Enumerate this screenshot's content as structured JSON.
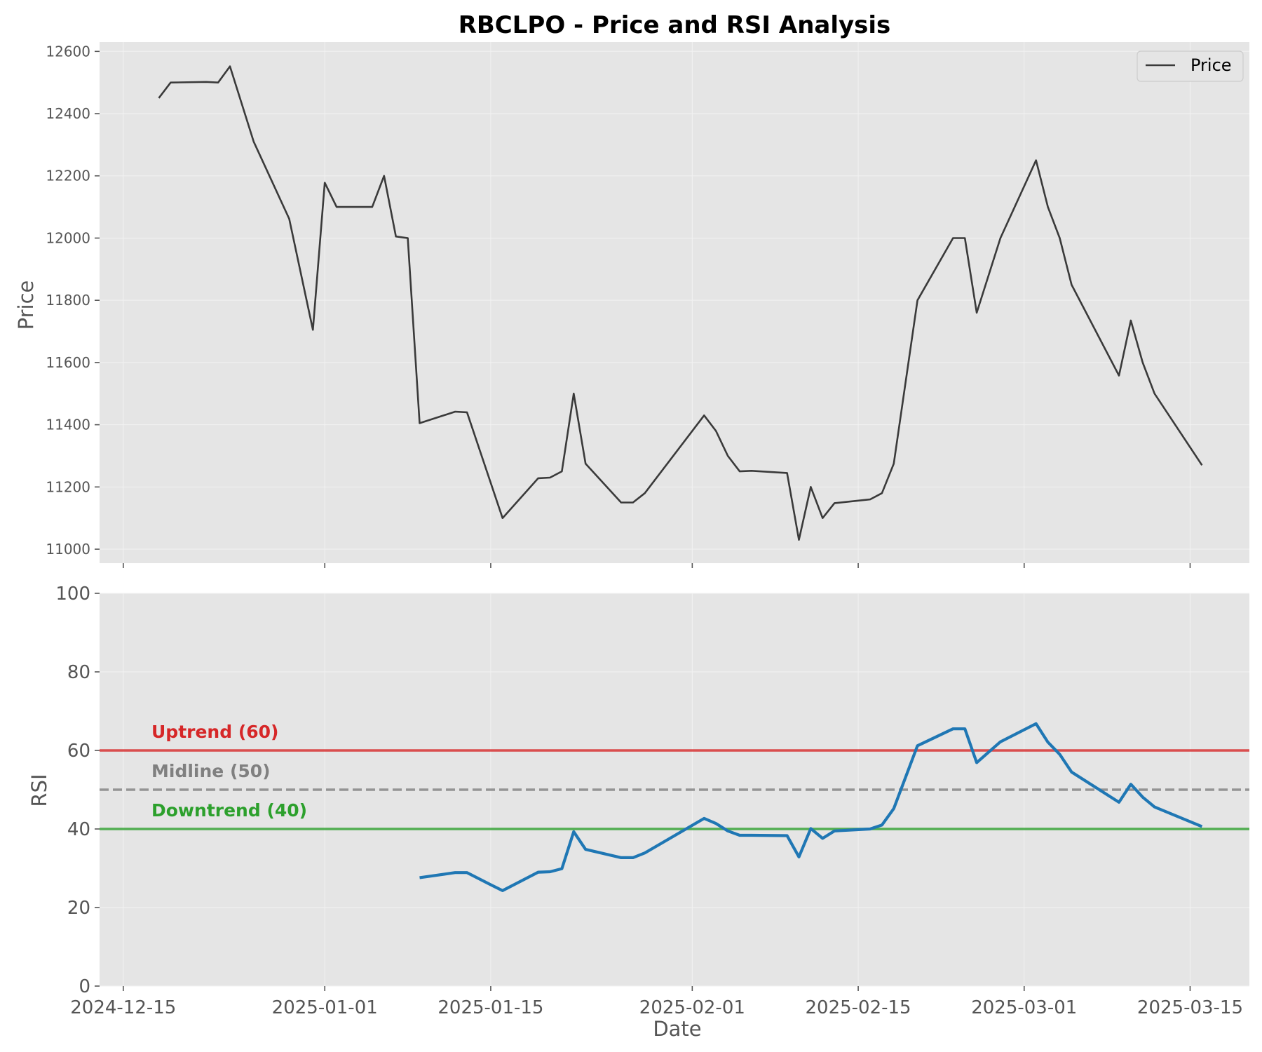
{
  "chart_data": {
    "title": "RBCLPO - Price and RSI Analysis",
    "xlabel": "Date",
    "x_ticks": [
      "2024-12-15",
      "2025-01-01",
      "2025-01-15",
      "2025-02-01",
      "2025-02-15",
      "2025-03-01",
      "2025-03-15"
    ],
    "x_range": [
      "2024-12-13",
      "2025-03-20"
    ],
    "panels": [
      {
        "type": "line",
        "ylabel": "Price",
        "ylim": [
          10955,
          12630
        ],
        "yticks": [
          11000,
          11200,
          11400,
          11600,
          11800,
          12000,
          12200,
          12400,
          12600
        ],
        "grid": true,
        "legend": {
          "position": "top-right",
          "entries": [
            "Price"
          ]
        },
        "series": [
          {
            "name": "Price",
            "color": "#3a3a3a",
            "points": [
              [
                "2024-12-18",
                12450
              ],
              [
                "2024-12-19",
                12500
              ],
              [
                "2024-12-22",
                12502
              ],
              [
                "2024-12-23",
                12500
              ],
              [
                "2024-12-24",
                12552
              ],
              [
                "2024-12-26",
                12310
              ],
              [
                "2024-12-29",
                12062
              ],
              [
                "2024-12-31",
                11705
              ],
              [
                "2025-01-01",
                12178
              ],
              [
                "2025-01-02",
                12100
              ],
              [
                "2025-01-05",
                12100
              ],
              [
                "2025-01-06",
                12200
              ],
              [
                "2025-01-07",
                12005
              ],
              [
                "2025-01-08",
                12000
              ],
              [
                "2025-01-09",
                11405
              ],
              [
                "2025-01-12",
                11442
              ],
              [
                "2025-01-13",
                11440
              ],
              [
                "2025-01-16",
                11100
              ],
              [
                "2025-01-19",
                11228
              ],
              [
                "2025-01-20",
                11230
              ],
              [
                "2025-01-21",
                11250
              ],
              [
                "2025-01-22",
                11500
              ],
              [
                "2025-01-23",
                11275
              ],
              [
                "2025-01-26",
                11150
              ],
              [
                "2025-01-27",
                11150
              ],
              [
                "2025-01-28",
                11180
              ],
              [
                "2025-02-02",
                11430
              ],
              [
                "2025-02-03",
                11380
              ],
              [
                "2025-02-04",
                11300
              ],
              [
                "2025-02-05",
                11250
              ],
              [
                "2025-02-06",
                11252
              ],
              [
                "2025-02-09",
                11245
              ],
              [
                "2025-02-10",
                11030
              ],
              [
                "2025-02-11",
                11200
              ],
              [
                "2025-02-12",
                11100
              ],
              [
                "2025-02-13",
                11148
              ],
              [
                "2025-02-16",
                11160
              ],
              [
                "2025-02-17",
                11180
              ],
              [
                "2025-02-18",
                11275
              ],
              [
                "2025-02-20",
                11800
              ],
              [
                "2025-02-23",
                12000
              ],
              [
                "2025-02-24",
                12000
              ],
              [
                "2025-02-25",
                11760
              ],
              [
                "2025-02-27",
                12000
              ],
              [
                "2025-03-02",
                12250
              ],
              [
                "2025-03-03",
                12100
              ],
              [
                "2025-03-04",
                12000
              ],
              [
                "2025-03-05",
                11850
              ],
              [
                "2025-03-09",
                11558
              ],
              [
                "2025-03-10",
                11735
              ],
              [
                "2025-03-11",
                11600
              ],
              [
                "2025-03-12",
                11500
              ],
              [
                "2025-03-16",
                11270
              ]
            ]
          }
        ]
      },
      {
        "type": "line",
        "ylabel": "RSI",
        "ylim": [
          0,
          100
        ],
        "yticks": [
          0,
          20,
          40,
          60,
          80,
          100
        ],
        "grid": true,
        "reference_lines": [
          {
            "label": "Uptrend (60)",
            "value": 60,
            "color": "#d62728",
            "style": "solid"
          },
          {
            "label": "Midline (50)",
            "value": 50,
            "color": "#808080",
            "style": "dashed"
          },
          {
            "label": "Downtrend (40)",
            "value": 40,
            "color": "#2ca02c",
            "style": "solid"
          }
        ],
        "series": [
          {
            "name": "RSI",
            "color": "#1f77b4",
            "points": [
              [
                "2025-01-09",
                27.6
              ],
              [
                "2025-01-12",
                28.9
              ],
              [
                "2025-01-13",
                28.9
              ],
              [
                "2025-01-15",
                25.8
              ],
              [
                "2025-01-16",
                24.3
              ],
              [
                "2025-01-19",
                29.0
              ],
              [
                "2025-01-20",
                29.1
              ],
              [
                "2025-01-21",
                29.9
              ],
              [
                "2025-01-22",
                39.3
              ],
              [
                "2025-01-23",
                34.8
              ],
              [
                "2025-01-26",
                32.7
              ],
              [
                "2025-01-27",
                32.7
              ],
              [
                "2025-01-28",
                33.9
              ],
              [
                "2025-02-02",
                42.7
              ],
              [
                "2025-02-03",
                41.4
              ],
              [
                "2025-02-04",
                39.5
              ],
              [
                "2025-02-05",
                38.4
              ],
              [
                "2025-02-06",
                38.4
              ],
              [
                "2025-02-09",
                38.3
              ],
              [
                "2025-02-10",
                32.9
              ],
              [
                "2025-02-11",
                40.1
              ],
              [
                "2025-02-12",
                37.6
              ],
              [
                "2025-02-13",
                39.5
              ],
              [
                "2025-02-16",
                40.0
              ],
              [
                "2025-02-17",
                41.0
              ],
              [
                "2025-02-18",
                45.2
              ],
              [
                "2025-02-20",
                61.2
              ],
              [
                "2025-02-23",
                65.5
              ],
              [
                "2025-02-24",
                65.5
              ],
              [
                "2025-02-25",
                56.9
              ],
              [
                "2025-02-27",
                62.2
              ],
              [
                "2025-03-02",
                66.8
              ],
              [
                "2025-03-03",
                62.1
              ],
              [
                "2025-03-04",
                59.0
              ],
              [
                "2025-03-05",
                54.5
              ],
              [
                "2025-03-09",
                46.8
              ],
              [
                "2025-03-10",
                51.4
              ],
              [
                "2025-03-11",
                48.1
              ],
              [
                "2025-03-12",
                45.6
              ],
              [
                "2025-03-16",
                40.6
              ]
            ]
          }
        ]
      }
    ]
  }
}
